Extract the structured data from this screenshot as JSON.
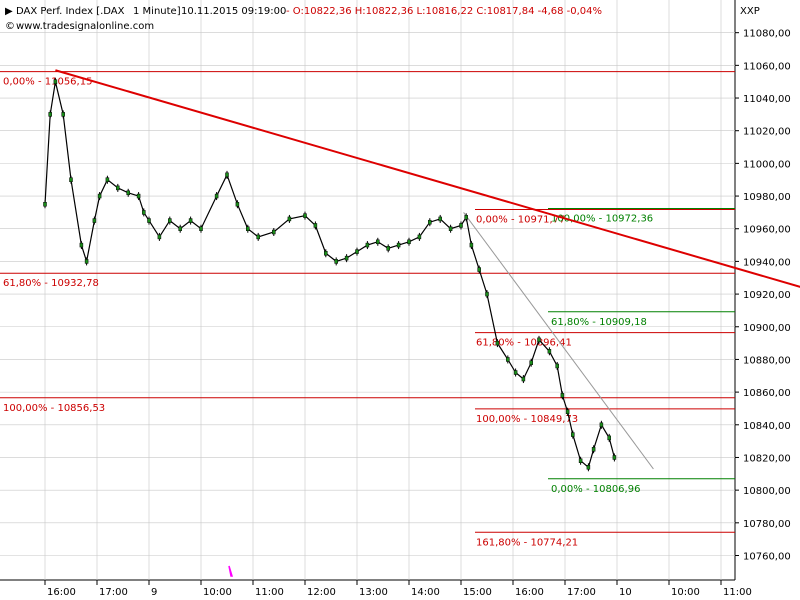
{
  "header": {
    "symbol": "DAX Perf. Index [.DAX",
    "interval": "1 Minute]",
    "datetime": "10.11.2015 09:19:00",
    "ohlc": "- O:10822,36 H:10822,36 L:10816,22 C:10817,84 -4,68 -0,04%",
    "website": "www.tradesignalonline.com",
    "exchange": "XXP"
  },
  "colors": {
    "grid": "#c8c8c8",
    "level_red": "#cc0000",
    "level_green": "#008000",
    "trendline": "#dd0000",
    "support_line": "#999999",
    "candle_up": "#000000",
    "candle_down": "#000000",
    "marker": "#ff00ff"
  },
  "chart_data": {
    "type": "line",
    "title": "DAX Perf. Index [.DAX 1 Minute]",
    "ylim": [
      10745,
      11100
    ],
    "ylabels": [
      "11080,00",
      "11060,00",
      "11040,00",
      "11020,00",
      "11000,00",
      "10980,00",
      "10960,00",
      "10940,00",
      "10920,00",
      "10900,00",
      "10880,00",
      "10860,00",
      "10840,00",
      "10820,00",
      "10800,00",
      "10780,00",
      "10760,00"
    ],
    "yticks": [
      11080,
      11060,
      11040,
      11020,
      11000,
      10980,
      10960,
      10940,
      10920,
      10900,
      10880,
      10860,
      10840,
      10820,
      10800,
      10780,
      10760
    ],
    "xlabels": [
      {
        "label": "16:00",
        "i": 0
      },
      {
        "label": "17:00",
        "i": 1
      },
      {
        "label": "9",
        "i": 2
      },
      {
        "label": "10:00",
        "i": 3
      },
      {
        "label": "11:00",
        "i": 4
      },
      {
        "label": "12:00",
        "i": 5
      },
      {
        "label": "13:00",
        "i": 6
      },
      {
        "label": "14:00",
        "i": 7
      },
      {
        "label": "15:00",
        "i": 8
      },
      {
        "label": "16:00",
        "i": 9
      },
      {
        "label": "17:00",
        "i": 10
      },
      {
        "label": "10",
        "i": 11
      },
      {
        "label": "10:00",
        "i": 12
      },
      {
        "label": "11:00",
        "i": 13
      }
    ],
    "series": [
      {
        "values": [
          [
            0,
            10975
          ],
          [
            0.1,
            11030
          ],
          [
            0.2,
            11050
          ],
          [
            0.35,
            11030
          ],
          [
            0.5,
            10990
          ],
          [
            0.7,
            10950
          ],
          [
            0.8,
            10940
          ],
          [
            0.95,
            10965
          ],
          [
            1.05,
            10980
          ],
          [
            1.2,
            10990
          ],
          [
            1.4,
            10985
          ],
          [
            1.6,
            10982
          ],
          [
            1.8,
            10980
          ],
          [
            1.9,
            10970
          ],
          [
            2.0,
            10965
          ],
          [
            2.2,
            10955
          ],
          [
            2.4,
            10965
          ],
          [
            2.6,
            10960
          ],
          [
            2.8,
            10965
          ],
          [
            3.0,
            10960
          ],
          [
            3.3,
            10980
          ],
          [
            3.5,
            10993
          ],
          [
            3.7,
            10975
          ],
          [
            3.9,
            10960
          ],
          [
            4.1,
            10955
          ],
          [
            4.4,
            10958
          ],
          [
            4.7,
            10966
          ],
          [
            5.0,
            10968
          ],
          [
            5.2,
            10962
          ],
          [
            5.4,
            10945
          ],
          [
            5.6,
            10940
          ],
          [
            5.8,
            10942
          ],
          [
            6.0,
            10946
          ],
          [
            6.2,
            10950
          ],
          [
            6.4,
            10952
          ],
          [
            6.6,
            10948
          ],
          [
            6.8,
            10950
          ],
          [
            7.0,
            10952
          ],
          [
            7.2,
            10955
          ],
          [
            7.4,
            10964
          ],
          [
            7.6,
            10966
          ],
          [
            7.8,
            10960
          ],
          [
            8.0,
            10962
          ],
          [
            8.1,
            10967
          ],
          [
            8.2,
            10950
          ],
          [
            8.35,
            10935
          ],
          [
            8.5,
            10920
          ],
          [
            8.7,
            10890
          ],
          [
            8.9,
            10880
          ],
          [
            9.05,
            10872
          ],
          [
            9.2,
            10868
          ],
          [
            9.35,
            10878
          ],
          [
            9.5,
            10892
          ],
          [
            9.7,
            10885
          ],
          [
            9.85,
            10876
          ],
          [
            9.95,
            10858
          ],
          [
            10.05,
            10848
          ],
          [
            10.15,
            10834
          ],
          [
            10.3,
            10818
          ],
          [
            10.45,
            10814
          ],
          [
            10.55,
            10825
          ],
          [
            10.7,
            10840
          ],
          [
            10.85,
            10832
          ],
          [
            10.95,
            10820
          ]
        ]
      }
    ],
    "fib_levels": [
      {
        "label": "0,00% - 11056,15",
        "value": 11056.15,
        "color": "red",
        "set": "A"
      },
      {
        "label": "61,80% - 10932,78",
        "value": 10932.78,
        "color": "red",
        "set": "A"
      },
      {
        "label": "100,00% - 10856,53",
        "value": 10856.53,
        "color": "red",
        "set": "A"
      },
      {
        "label": "0,00% - 10971,77",
        "value": 10971.77,
        "color": "red",
        "set": "B"
      },
      {
        "label": "61,80% - 10896,41",
        "value": 10896.41,
        "color": "red",
        "set": "B"
      },
      {
        "label": "100,00% - 10849,73",
        "value": 10849.73,
        "color": "red",
        "set": "B"
      },
      {
        "label": "161,80% - 10774,21",
        "value": 10774.21,
        "color": "red",
        "set": "B"
      },
      {
        "label": "100,00% - 10972,36",
        "value": 10972.36,
        "color": "green",
        "set": "C"
      },
      {
        "label": "61,80% - 10909,18",
        "value": 10909.18,
        "color": "green",
        "set": "C"
      },
      {
        "label": "0,00% - 10806,96",
        "value": 10806.96,
        "color": "green",
        "set": "C"
      }
    ],
    "trendlines": [
      {
        "name": "red",
        "from": [
          0.2,
          11057
        ],
        "to": [
          15.0,
          10920
        ]
      },
      {
        "name": "gray",
        "from": [
          8.05,
          10970
        ],
        "to": [
          11.7,
          10813
        ]
      }
    ],
    "grid": true
  }
}
